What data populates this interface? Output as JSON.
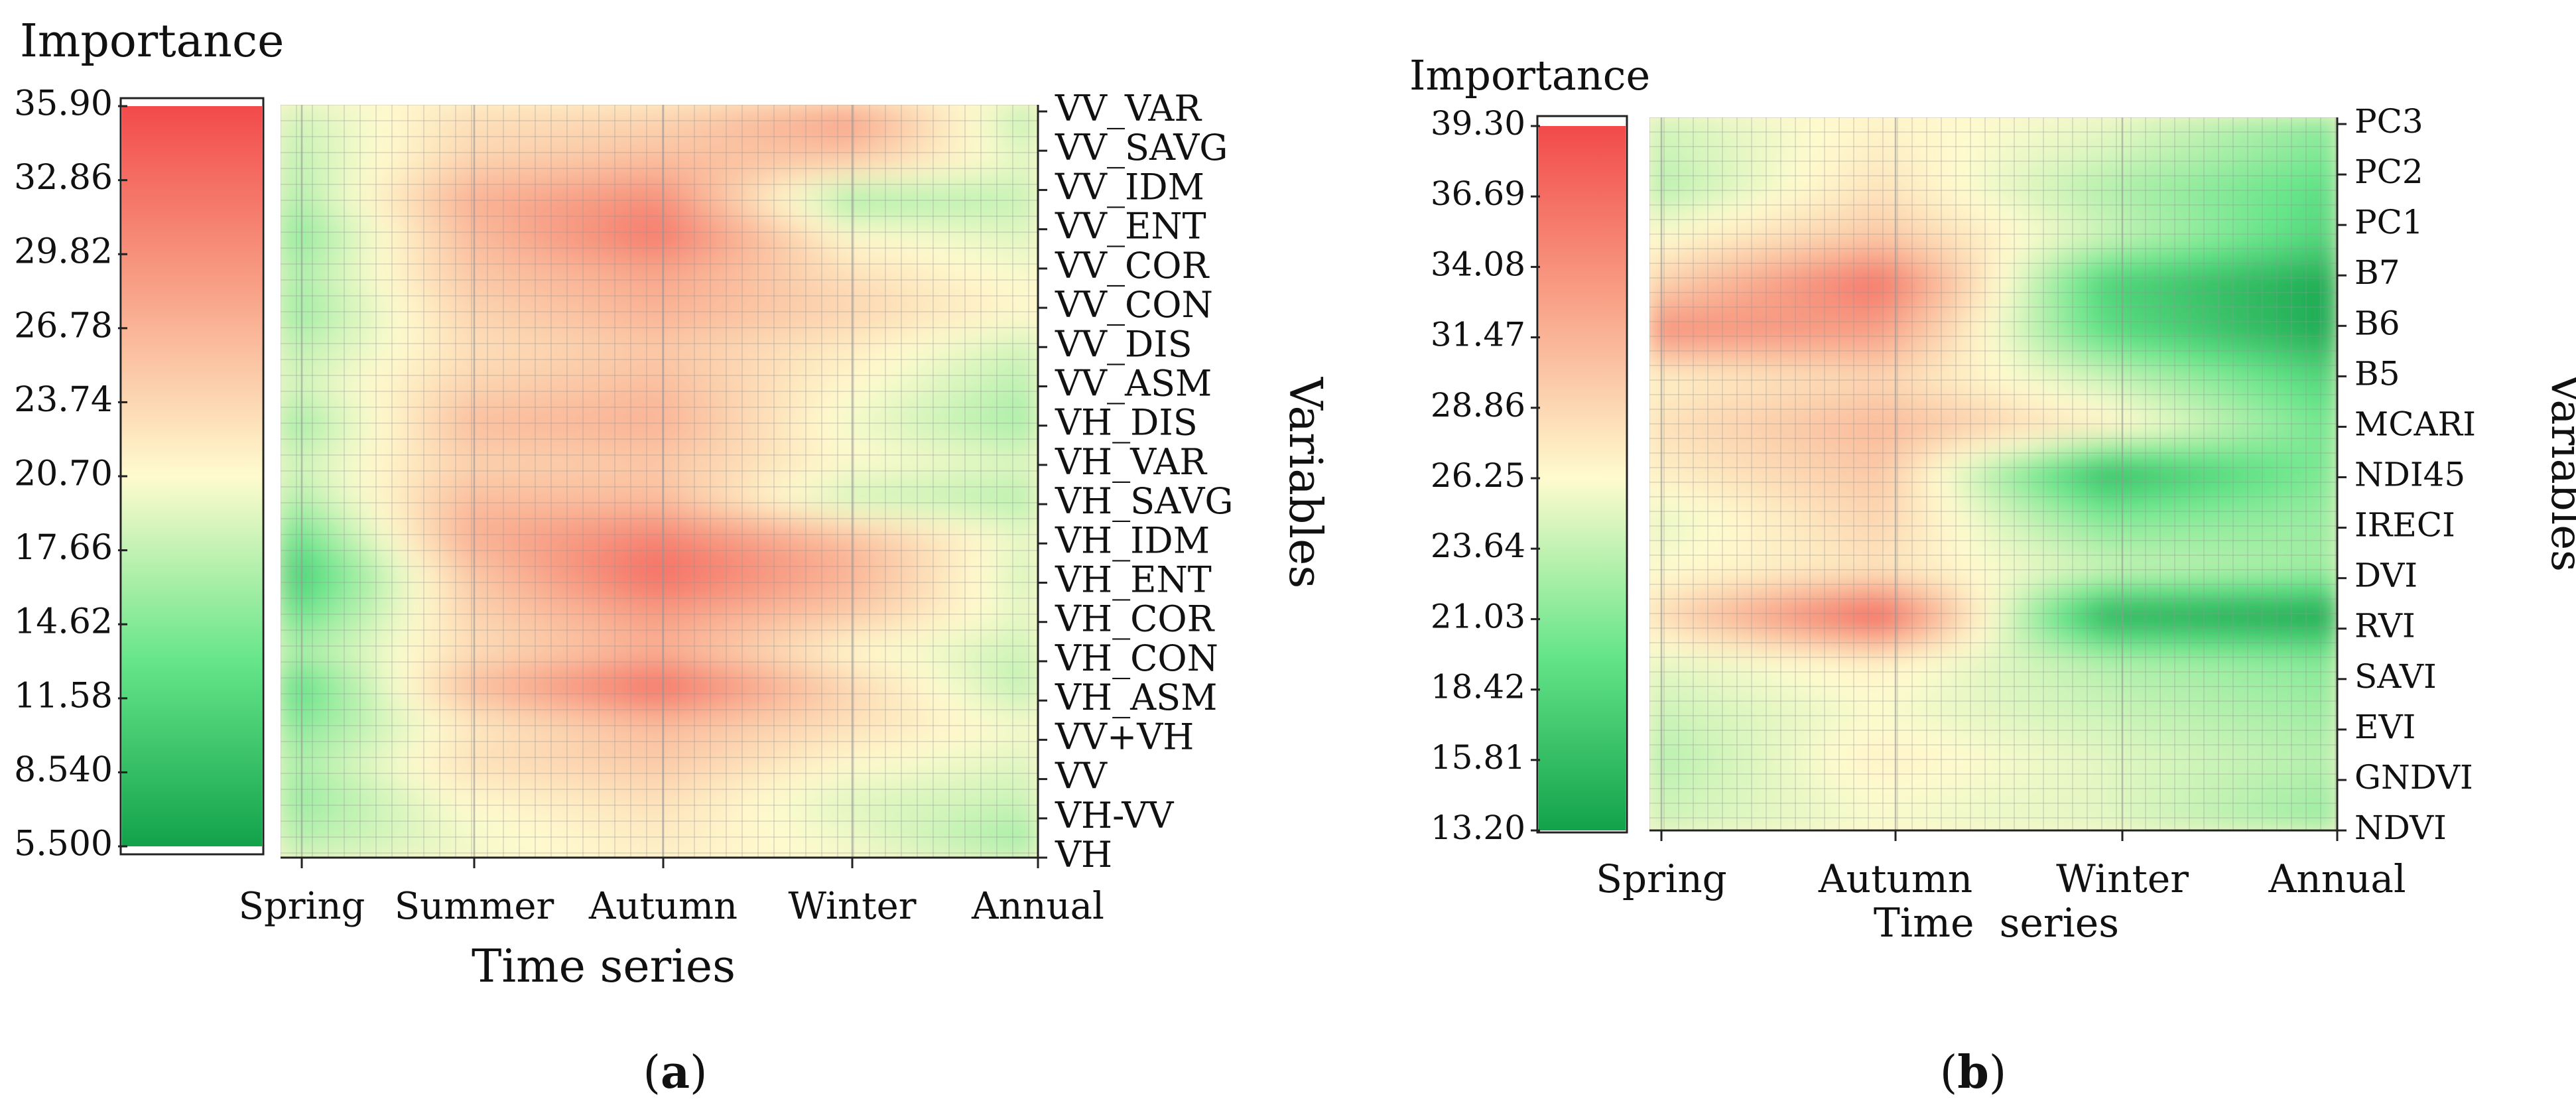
{
  "chart_data": [
    {
      "panel_label": "a",
      "type": "heatmap",
      "colorbar_label": "Importance",
      "colorbar_ticks": [
        "35.90",
        "32.86",
        "29.82",
        "26.78",
        "23.74",
        "20.70",
        "17.66",
        "14.62",
        "11.58",
        "8.540",
        "5.500"
      ],
      "zlim": [
        5.5,
        35.9
      ],
      "xlabel": "Time series",
      "ylabel": "Variables",
      "x_categories": [
        "Spring",
        "Summer",
        "Autumn",
        "Winter",
        "Annual"
      ],
      "y_categories": [
        "VV_VAR",
        "VV_SAVG",
        "VV_IDM",
        "VV_ENT",
        "VV_COR",
        "VV_CON",
        "VV_DIS",
        "VV_ASM",
        "VH_DIS",
        "VH_VAR",
        "VH_SAVG",
        "VH_IDM",
        "VH_ENT",
        "VH_COR",
        "VH_CON",
        "VH_ASM",
        "VV+VH",
        "VV",
        "VH-VV",
        "VH"
      ],
      "values": [
        [
          18,
          23,
          24,
          28,
          17
        ],
        [
          17,
          24,
          26,
          25,
          19
        ],
        [
          16,
          27,
          30,
          16,
          18
        ],
        [
          14,
          26,
          32,
          21,
          19
        ],
        [
          16,
          25,
          28,
          23,
          20
        ],
        [
          15,
          24,
          27,
          24,
          21
        ],
        [
          17,
          23,
          25,
          22,
          18
        ],
        [
          18,
          24,
          26,
          21,
          17
        ],
        [
          15,
          26,
          27,
          20,
          16
        ],
        [
          18,
          24,
          25,
          21,
          19
        ],
        [
          16,
          26,
          26,
          18,
          17
        ],
        [
          12,
          27,
          31,
          26,
          19
        ],
        [
          9,
          25,
          33,
          27,
          18
        ],
        [
          12,
          24,
          29,
          25,
          19
        ],
        [
          16,
          23,
          27,
          21,
          18
        ],
        [
          11,
          26,
          33,
          24,
          17
        ],
        [
          14,
          22,
          26,
          23,
          20
        ],
        [
          16,
          23,
          25,
          21,
          19
        ],
        [
          15,
          21,
          23,
          19,
          18
        ],
        [
          17,
          20,
          22,
          20,
          16
        ]
      ]
    },
    {
      "panel_label": "b",
      "type": "heatmap",
      "colorbar_label": "Importance",
      "colorbar_ticks": [
        "39.30",
        "36.69",
        "34.08",
        "31.47",
        "28.86",
        "26.25",
        "23.64",
        "21.03",
        "18.42",
        "15.81",
        "13.20"
      ],
      "zlim": [
        13.2,
        39.3
      ],
      "xlabel": "Time  series",
      "ylabel": "Variables",
      "x_categories": [
        "Spring",
        "Autumn",
        "Winter",
        "Annual"
      ],
      "y_categories": [
        "PC3",
        "PC2",
        "PC1",
        "B7",
        "B6",
        "B5",
        "MCARI",
        "NDI45",
        "IRECI",
        "DVI",
        "RVI",
        "SAVI",
        "EVI",
        "GNDVI",
        "NDVI"
      ],
      "values": [
        [
          24,
          27,
          25,
          21
        ],
        [
          23,
          28,
          23,
          19
        ],
        [
          26,
          30,
          24,
          18
        ],
        [
          29,
          36,
          18,
          14
        ],
        [
          34,
          33,
          19,
          14
        ],
        [
          27,
          29,
          24,
          18
        ],
        [
          28,
          31,
          27,
          20
        ],
        [
          27,
          30,
          16,
          21
        ],
        [
          25,
          29,
          21,
          22
        ],
        [
          26,
          28,
          24,
          22
        ],
        [
          28,
          37,
          15,
          14
        ],
        [
          25,
          27,
          23,
          21
        ],
        [
          24,
          26,
          24,
          22
        ],
        [
          23,
          27,
          25,
          23
        ],
        [
          24,
          26,
          25,
          22
        ]
      ]
    }
  ],
  "captions": [
    "a",
    "b"
  ]
}
